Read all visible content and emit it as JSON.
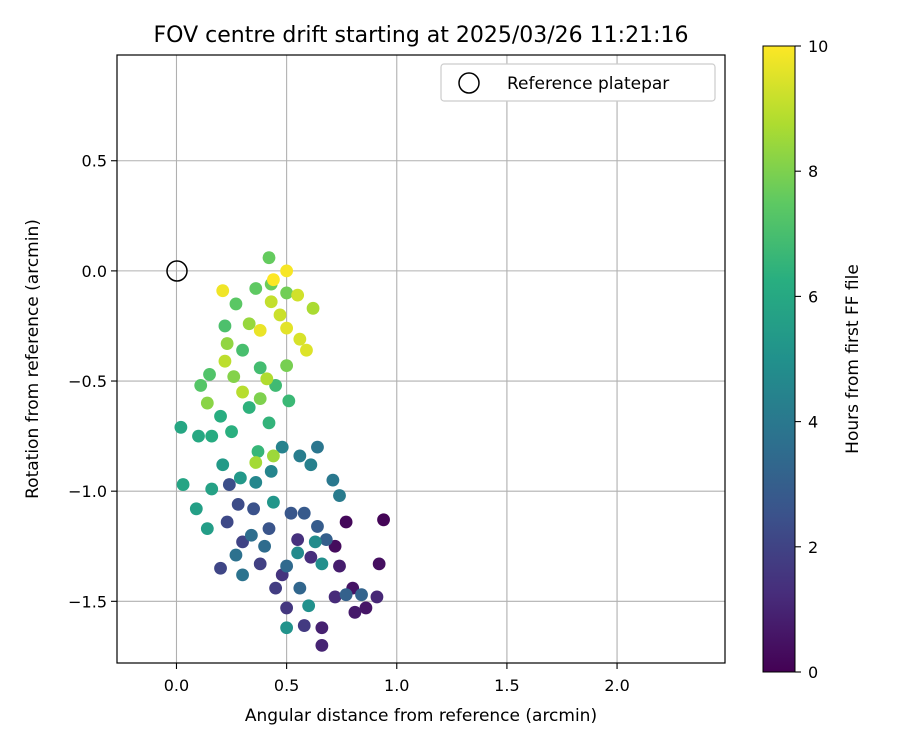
{
  "chart_data": {
    "type": "scatter",
    "title": "FOV centre drift starting at 2025/03/26 11:21:16",
    "xlabel": "Angular distance from reference (arcmin)",
    "ylabel": "Rotation from reference (arcmin)",
    "xlim": [
      -0.27,
      2.49
    ],
    "ylim": [
      -1.78,
      0.98
    ],
    "xticks": [
      "0.0",
      "0.5",
      "1.0",
      "1.5",
      "2.0"
    ],
    "yticks": [
      "0.5",
      "0.0",
      "−0.5",
      "−1.0",
      "−1.5"
    ],
    "grid": true,
    "legend": {
      "position": "top-right",
      "entries": [
        {
          "label": "Reference platepar",
          "marker": "open-circle"
        }
      ]
    },
    "reference_point": {
      "x": 0.0,
      "y": 0.0
    },
    "colorbar": {
      "label": "Hours from first FF file",
      "range": [
        0,
        10
      ],
      "ticks": [
        "0",
        "2",
        "4",
        "6",
        "8",
        "10"
      ],
      "colormap": "viridis"
    },
    "points": [
      {
        "x": 0.94,
        "y": -1.13,
        "t": 0.1
      },
      {
        "x": 0.77,
        "y": -1.14,
        "t": 0.2
      },
      {
        "x": 0.72,
        "y": -1.25,
        "t": 0.3
      },
      {
        "x": 0.92,
        "y": -1.33,
        "t": 0.4
      },
      {
        "x": 0.8,
        "y": -1.44,
        "t": 0.5
      },
      {
        "x": 0.86,
        "y": -1.53,
        "t": 0.6
      },
      {
        "x": 0.81,
        "y": -1.55,
        "t": 0.7
      },
      {
        "x": 0.74,
        "y": -1.34,
        "t": 0.8
      },
      {
        "x": 0.66,
        "y": -1.62,
        "t": 0.9
      },
      {
        "x": 0.66,
        "y": -1.7,
        "t": 1.0
      },
      {
        "x": 0.91,
        "y": -1.48,
        "t": 1.1
      },
      {
        "x": 0.72,
        "y": -1.48,
        "t": 1.2
      },
      {
        "x": 0.61,
        "y": -1.3,
        "t": 1.3
      },
      {
        "x": 0.55,
        "y": -1.22,
        "t": 1.4
      },
      {
        "x": 0.48,
        "y": -1.38,
        "t": 1.5
      },
      {
        "x": 0.5,
        "y": -1.53,
        "t": 1.6
      },
      {
        "x": 0.58,
        "y": -1.61,
        "t": 1.7
      },
      {
        "x": 0.45,
        "y": -1.44,
        "t": 1.8
      },
      {
        "x": 0.38,
        "y": -1.33,
        "t": 1.9
      },
      {
        "x": 0.3,
        "y": -1.23,
        "t": 2.0
      },
      {
        "x": 0.2,
        "y": -1.35,
        "t": 2.1
      },
      {
        "x": 0.23,
        "y": -1.14,
        "t": 2.2
      },
      {
        "x": 0.28,
        "y": -1.06,
        "t": 2.3
      },
      {
        "x": 0.24,
        "y": -0.97,
        "t": 2.4
      },
      {
        "x": 0.35,
        "y": -1.08,
        "t": 2.5
      },
      {
        "x": 0.42,
        "y": -1.17,
        "t": 2.6
      },
      {
        "x": 0.52,
        "y": -1.1,
        "t": 2.7
      },
      {
        "x": 0.58,
        "y": -1.1,
        "t": 2.8
      },
      {
        "x": 0.64,
        "y": -1.16,
        "t": 2.9
      },
      {
        "x": 0.68,
        "y": -1.22,
        "t": 3.0
      },
      {
        "x": 0.77,
        "y": -1.47,
        "t": 3.1
      },
      {
        "x": 0.84,
        "y": -1.47,
        "t": 3.2
      },
      {
        "x": 0.56,
        "y": -1.44,
        "t": 3.3
      },
      {
        "x": 0.5,
        "y": -1.34,
        "t": 3.4
      },
      {
        "x": 0.4,
        "y": -1.25,
        "t": 3.5
      },
      {
        "x": 0.34,
        "y": -1.2,
        "t": 3.6
      },
      {
        "x": 0.27,
        "y": -1.29,
        "t": 3.7
      },
      {
        "x": 0.3,
        "y": -1.38,
        "t": 3.8
      },
      {
        "x": 0.64,
        "y": -0.8,
        "t": 3.9
      },
      {
        "x": 0.71,
        "y": -0.95,
        "t": 4.0
      },
      {
        "x": 0.74,
        "y": -1.02,
        "t": 4.1
      },
      {
        "x": 0.56,
        "y": -0.84,
        "t": 4.2
      },
      {
        "x": 0.61,
        "y": -0.88,
        "t": 4.3
      },
      {
        "x": 0.48,
        "y": -0.8,
        "t": 4.4
      },
      {
        "x": 0.43,
        "y": -0.91,
        "t": 4.5
      },
      {
        "x": 0.36,
        "y": -0.96,
        "t": 4.6
      },
      {
        "x": 0.55,
        "y": -1.28,
        "t": 4.7
      },
      {
        "x": 0.63,
        "y": -1.23,
        "t": 4.8
      },
      {
        "x": 0.66,
        "y": -1.33,
        "t": 4.9
      },
      {
        "x": 0.6,
        "y": -1.52,
        "t": 5.0
      },
      {
        "x": 0.5,
        "y": -1.62,
        "t": 5.1
      },
      {
        "x": 0.44,
        "y": -1.05,
        "t": 5.2
      },
      {
        "x": 0.29,
        "y": -0.94,
        "t": 5.3
      },
      {
        "x": 0.21,
        "y": -0.88,
        "t": 5.4
      },
      {
        "x": 0.14,
        "y": -1.17,
        "t": 5.5
      },
      {
        "x": 0.09,
        "y": -1.08,
        "t": 5.6
      },
      {
        "x": 0.16,
        "y": -0.99,
        "t": 5.7
      },
      {
        "x": 0.03,
        "y": -0.97,
        "t": 5.8
      },
      {
        "x": 0.02,
        "y": -0.71,
        "t": 5.9
      },
      {
        "x": 0.1,
        "y": -0.75,
        "t": 6.0
      },
      {
        "x": 0.16,
        "y": -0.75,
        "t": 6.1
      },
      {
        "x": 0.2,
        "y": -0.66,
        "t": 6.2
      },
      {
        "x": 0.25,
        "y": -0.73,
        "t": 6.3
      },
      {
        "x": 0.33,
        "y": -0.62,
        "t": 6.4
      },
      {
        "x": 0.42,
        "y": -0.69,
        "t": 6.5
      },
      {
        "x": 0.37,
        "y": -0.82,
        "t": 6.6
      },
      {
        "x": 0.51,
        "y": -0.59,
        "t": 6.7
      },
      {
        "x": 0.45,
        "y": -0.52,
        "t": 6.8
      },
      {
        "x": 0.38,
        "y": -0.44,
        "t": 6.9
      },
      {
        "x": 0.3,
        "y": -0.36,
        "t": 7.0
      },
      {
        "x": 0.22,
        "y": -0.25,
        "t": 7.1
      },
      {
        "x": 0.15,
        "y": -0.47,
        "t": 7.2
      },
      {
        "x": 0.11,
        "y": -0.52,
        "t": 7.3
      },
      {
        "x": 0.27,
        "y": -0.15,
        "t": 7.4
      },
      {
        "x": 0.36,
        "y": -0.08,
        "t": 7.5
      },
      {
        "x": 0.42,
        "y": 0.06,
        "t": 7.6
      },
      {
        "x": 0.43,
        "y": -0.06,
        "t": 7.7
      },
      {
        "x": 0.5,
        "y": -0.1,
        "t": 7.8
      },
      {
        "x": 0.5,
        "y": -0.43,
        "t": 7.9
      },
      {
        "x": 0.38,
        "y": -0.58,
        "t": 8.0
      },
      {
        "x": 0.26,
        "y": -0.48,
        "t": 8.1
      },
      {
        "x": 0.14,
        "y": -0.6,
        "t": 8.2
      },
      {
        "x": 0.23,
        "y": -0.33,
        "t": 8.3
      },
      {
        "x": 0.33,
        "y": -0.24,
        "t": 8.4
      },
      {
        "x": 0.44,
        "y": -0.84,
        "t": 8.5
      },
      {
        "x": 0.36,
        "y": -0.87,
        "t": 8.6
      },
      {
        "x": 0.62,
        "y": -0.17,
        "t": 8.7
      },
      {
        "x": 0.41,
        "y": -0.49,
        "t": 8.8
      },
      {
        "x": 0.3,
        "y": -0.55,
        "t": 8.9
      },
      {
        "x": 0.22,
        "y": -0.41,
        "t": 9.0
      },
      {
        "x": 0.43,
        "y": -0.14,
        "t": 9.1
      },
      {
        "x": 0.47,
        "y": -0.2,
        "t": 9.2
      },
      {
        "x": 0.55,
        "y": -0.11,
        "t": 9.3
      },
      {
        "x": 0.56,
        "y": -0.31,
        "t": 9.4
      },
      {
        "x": 0.59,
        "y": -0.36,
        "t": 9.5
      },
      {
        "x": 0.5,
        "y": -0.26,
        "t": 9.6
      },
      {
        "x": 0.38,
        "y": -0.27,
        "t": 9.7
      },
      {
        "x": 0.21,
        "y": -0.09,
        "t": 9.8
      },
      {
        "x": 0.5,
        "y": 0.0,
        "t": 9.9
      },
      {
        "x": 0.44,
        "y": -0.04,
        "t": 10.0
      }
    ]
  }
}
